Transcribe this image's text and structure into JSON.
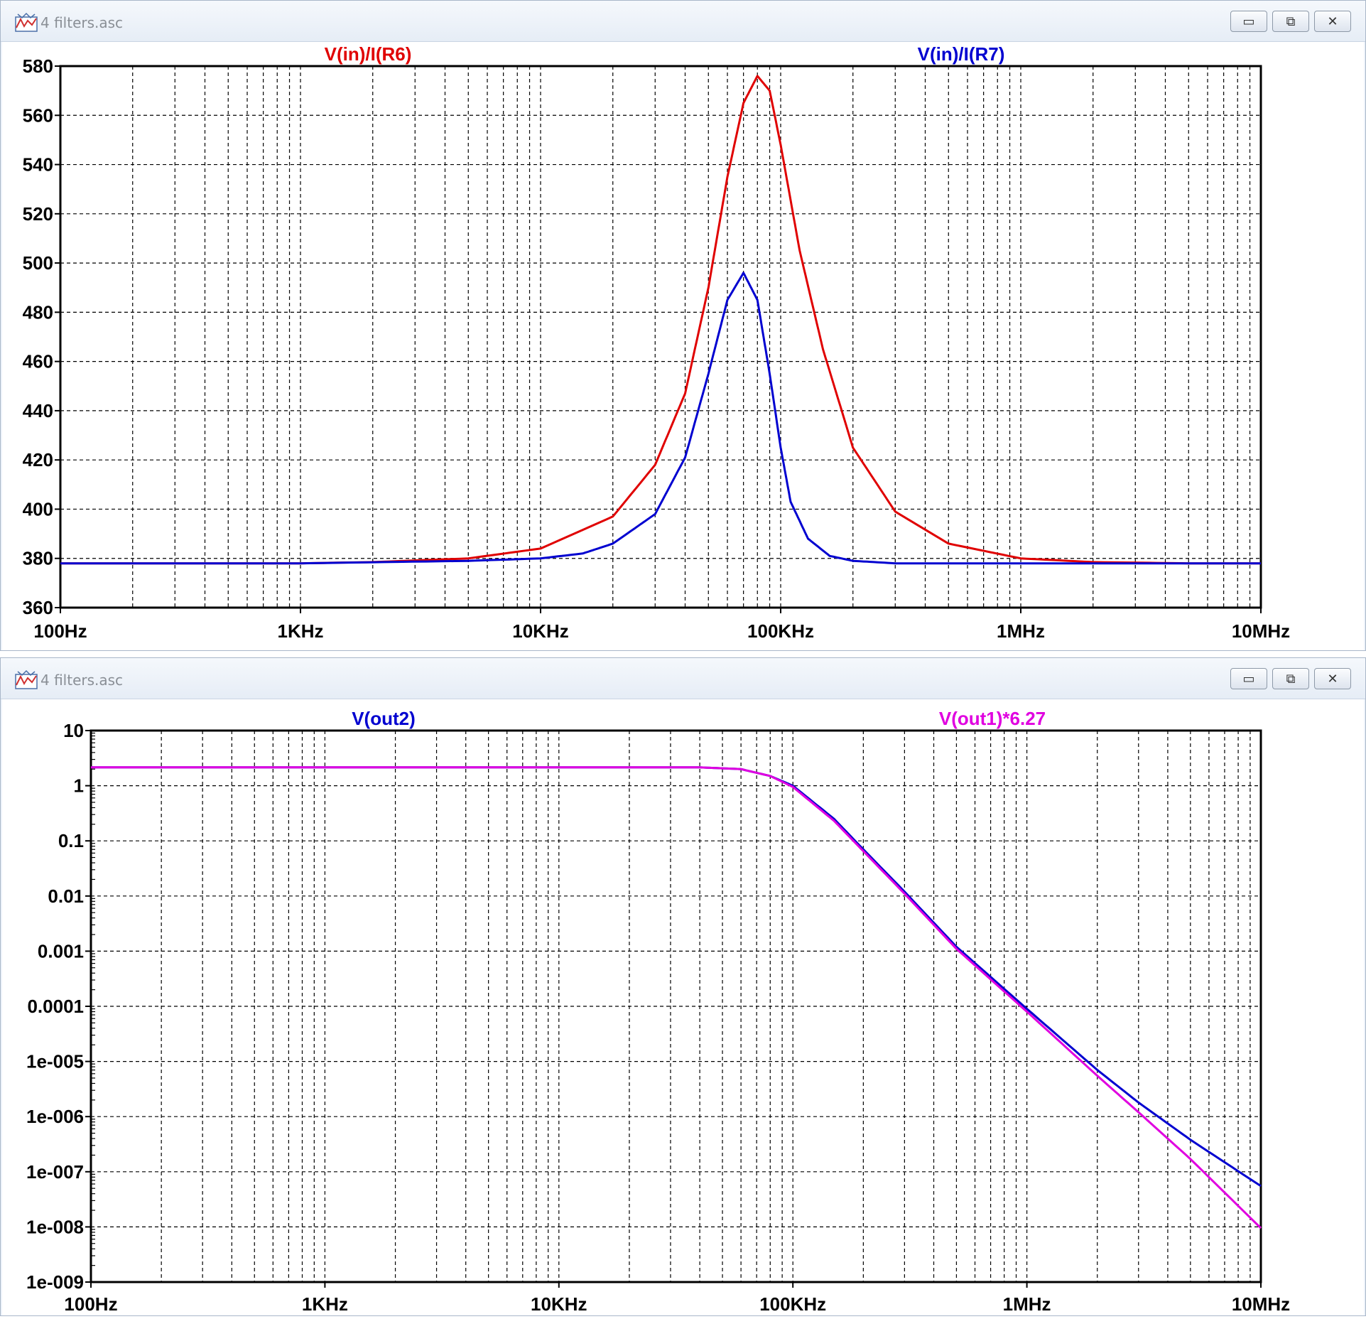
{
  "windows": [
    {
      "title": "4 filters.asc",
      "controls": {
        "minimize": "▭",
        "maximize": "⧉",
        "close": "✕"
      },
      "icon": "waveform-window-icon"
    },
    {
      "title": "4 filters.asc",
      "controls": {
        "minimize": "▭",
        "maximize": "⧉",
        "close": "✕"
      },
      "icon": "waveform-window-icon"
    }
  ],
  "chart_data": [
    {
      "type": "line",
      "xscale": "log",
      "xlim": [
        100,
        10000000
      ],
      "xticks": [
        {
          "value": 100,
          "label": "100Hz"
        },
        {
          "value": 1000,
          "label": "1KHz"
        },
        {
          "value": 10000,
          "label": "10KHz"
        },
        {
          "value": 100000,
          "label": "100KHz"
        },
        {
          "value": 1000000,
          "label": "1MHz"
        },
        {
          "value": 10000000,
          "label": "10MHz"
        }
      ],
      "yscale": "linear",
      "ylim": [
        360,
        580
      ],
      "yticks": [
        {
          "value": 580,
          "label": "580"
        },
        {
          "value": 560,
          "label": "560"
        },
        {
          "value": 540,
          "label": "540"
        },
        {
          "value": 520,
          "label": "520"
        },
        {
          "value": 500,
          "label": "500"
        },
        {
          "value": 480,
          "label": "480"
        },
        {
          "value": 460,
          "label": "460"
        },
        {
          "value": 440,
          "label": "440"
        },
        {
          "value": 420,
          "label": "420"
        },
        {
          "value": 400,
          "label": "400"
        },
        {
          "value": 380,
          "label": "380"
        },
        {
          "value": 360,
          "label": "360"
        }
      ],
      "grid": true,
      "legend_position": "top",
      "series": [
        {
          "name": "V(in)/I(R6)",
          "color": "#e00000",
          "points": [
            [
              100,
              378
            ],
            [
              1000,
              378
            ],
            [
              2000,
              378.5
            ],
            [
              5000,
              380
            ],
            [
              10000,
              384
            ],
            [
              20000,
              397
            ],
            [
              30000,
              418
            ],
            [
              40000,
              447
            ],
            [
              50000,
              490
            ],
            [
              60000,
              535
            ],
            [
              70000,
              565
            ],
            [
              80000,
              576
            ],
            [
              90000,
              570
            ],
            [
              100000,
              548
            ],
            [
              120000,
              505
            ],
            [
              150000,
              465
            ],
            [
              200000,
              425
            ],
            [
              300000,
              399
            ],
            [
              500000,
              386
            ],
            [
              1000000,
              380
            ],
            [
              2000000,
              378.5
            ],
            [
              5000000,
              378
            ],
            [
              10000000,
              378
            ]
          ]
        },
        {
          "name": "V(in)/I(R7)",
          "color": "#0000d0",
          "points": [
            [
              100,
              378
            ],
            [
              1000,
              378
            ],
            [
              5000,
              379
            ],
            [
              10000,
              380
            ],
            [
              15000,
              382
            ],
            [
              20000,
              386
            ],
            [
              30000,
              398
            ],
            [
              40000,
              421
            ],
            [
              50000,
              455
            ],
            [
              60000,
              485
            ],
            [
              70000,
              496
            ],
            [
              80000,
              485
            ],
            [
              90000,
              455
            ],
            [
              100000,
              425
            ],
            [
              110000,
              403
            ],
            [
              130000,
              388
            ],
            [
              160000,
              381
            ],
            [
              200000,
              379
            ],
            [
              300000,
              378
            ],
            [
              1000000,
              378
            ],
            [
              10000000,
              378
            ]
          ]
        }
      ]
    },
    {
      "type": "line",
      "xscale": "log",
      "xlim": [
        100,
        10000000
      ],
      "xticks": [
        {
          "value": 100,
          "label": "100Hz"
        },
        {
          "value": 1000,
          "label": "1KHz"
        },
        {
          "value": 10000,
          "label": "10KHz"
        },
        {
          "value": 100000,
          "label": "100KHz"
        },
        {
          "value": 1000000,
          "label": "1MHz"
        },
        {
          "value": 10000000,
          "label": "10MHz"
        }
      ],
      "yscale": "log",
      "ylim": [
        1e-09,
        10
      ],
      "yticks": [
        {
          "value": 10,
          "label": "10"
        },
        {
          "value": 1,
          "label": "1"
        },
        {
          "value": 0.1,
          "label": "0.1"
        },
        {
          "value": 0.01,
          "label": "0.01"
        },
        {
          "value": 0.001,
          "label": "0.001"
        },
        {
          "value": 0.0001,
          "label": "0.0001"
        },
        {
          "value": 1e-05,
          "label": "1e-005"
        },
        {
          "value": 1e-06,
          "label": "1e-006"
        },
        {
          "value": 1e-07,
          "label": "1e-007"
        },
        {
          "value": 1e-08,
          "label": "1e-008"
        },
        {
          "value": 1e-09,
          "label": "1e-009"
        }
      ],
      "grid": true,
      "legend_position": "top",
      "series": [
        {
          "name": "V(out2)",
          "color": "#0000d0",
          "points": [
            [
              100,
              2.15
            ],
            [
              10000,
              2.15
            ],
            [
              40000,
              2.15
            ],
            [
              60000,
              2.0
            ],
            [
              80000,
              1.5
            ],
            [
              100000,
              1.0
            ],
            [
              150000,
              0.25
            ],
            [
              200000,
              0.07
            ],
            [
              300000,
              0.012
            ],
            [
              500000,
              0.0012
            ],
            [
              1000000,
              9e-05
            ],
            [
              2000000,
              7e-06
            ],
            [
              3000000,
              1.8e-06
            ],
            [
              5000000,
              3.8e-07
            ],
            [
              10000000,
              5.5e-08
            ]
          ]
        },
        {
          "name": "V(out1)*6.27",
          "color": "#e000e0",
          "points": [
            [
              100,
              2.15
            ],
            [
              10000,
              2.15
            ],
            [
              40000,
              2.15
            ],
            [
              60000,
              2.0
            ],
            [
              80000,
              1.5
            ],
            [
              100000,
              0.95
            ],
            [
              150000,
              0.23
            ],
            [
              200000,
              0.065
            ],
            [
              300000,
              0.011
            ],
            [
              500000,
              0.0011
            ],
            [
              1000000,
              8e-05
            ],
            [
              2000000,
              5.5e-06
            ],
            [
              3000000,
              1.2e-06
            ],
            [
              5000000,
              1.7e-07
            ],
            [
              10000000,
              9.5e-09
            ]
          ]
        }
      ]
    }
  ]
}
